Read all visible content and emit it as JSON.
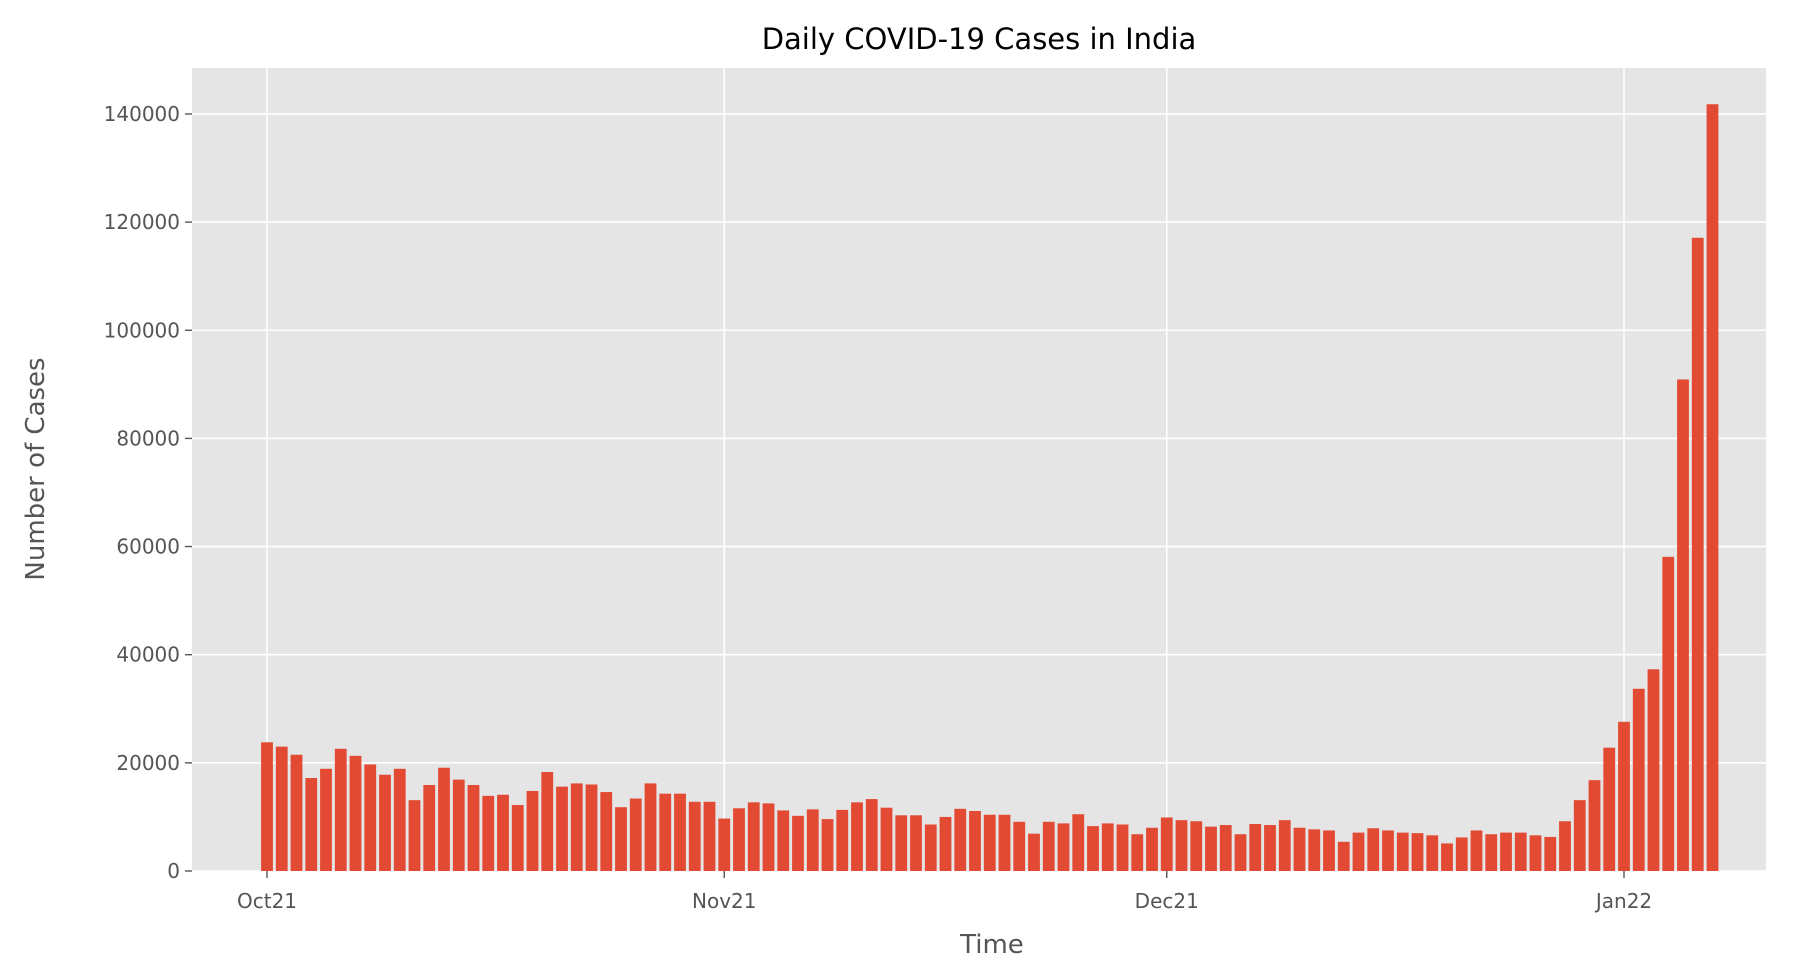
{
  "chart_data": {
    "type": "bar",
    "title": "Daily COVID-19 Cases in India",
    "xlabel": "Time",
    "ylabel": "Number of Cases",
    "ylim": [
      0,
      148500
    ],
    "grid": true,
    "color": "#E24A33",
    "background": "#E5E5E5",
    "x_start": "2021-10-01",
    "x_ticks": [
      {
        "date": "2021-10-01",
        "label": "Oct21"
      },
      {
        "date": "2021-11-01",
        "label": "Nov21"
      },
      {
        "date": "2021-12-01",
        "label": "Dec21"
      },
      {
        "date": "2022-01-01",
        "label": "Jan22"
      }
    ],
    "y_ticks": [
      0,
      20000,
      40000,
      60000,
      80000,
      100000,
      120000,
      140000
    ],
    "values": [
      23800,
      23000,
      21500,
      17200,
      18900,
      22600,
      21300,
      19700,
      17800,
      18900,
      13100,
      15900,
      19100,
      16900,
      15900,
      13900,
      14100,
      12200,
      14800,
      18300,
      15600,
      16200,
      16000,
      14600,
      11800,
      13400,
      16200,
      14300,
      14300,
      12800,
      12800,
      9700,
      11600,
      12700,
      12500,
      11200,
      10200,
      11400,
      9600,
      11300,
      12700,
      13300,
      11700,
      10300,
      10300,
      8600,
      10000,
      11500,
      11100,
      10400,
      10400,
      9100,
      6900,
      9100,
      8800,
      10500,
      8300,
      8800,
      8600,
      6800,
      8000,
      9900,
      9400,
      9200,
      8200,
      8500,
      6800,
      8700,
      8500,
      9400,
      8000,
      7700,
      7500,
      5400,
      7100,
      7900,
      7500,
      7100,
      7000,
      6600,
      5100,
      6200,
      7500,
      6800,
      7100,
      7100,
      6600,
      6300,
      9200,
      13100,
      16800,
      22800,
      27600,
      33700,
      37300,
      58100,
      90900,
      117100,
      141800
    ]
  }
}
